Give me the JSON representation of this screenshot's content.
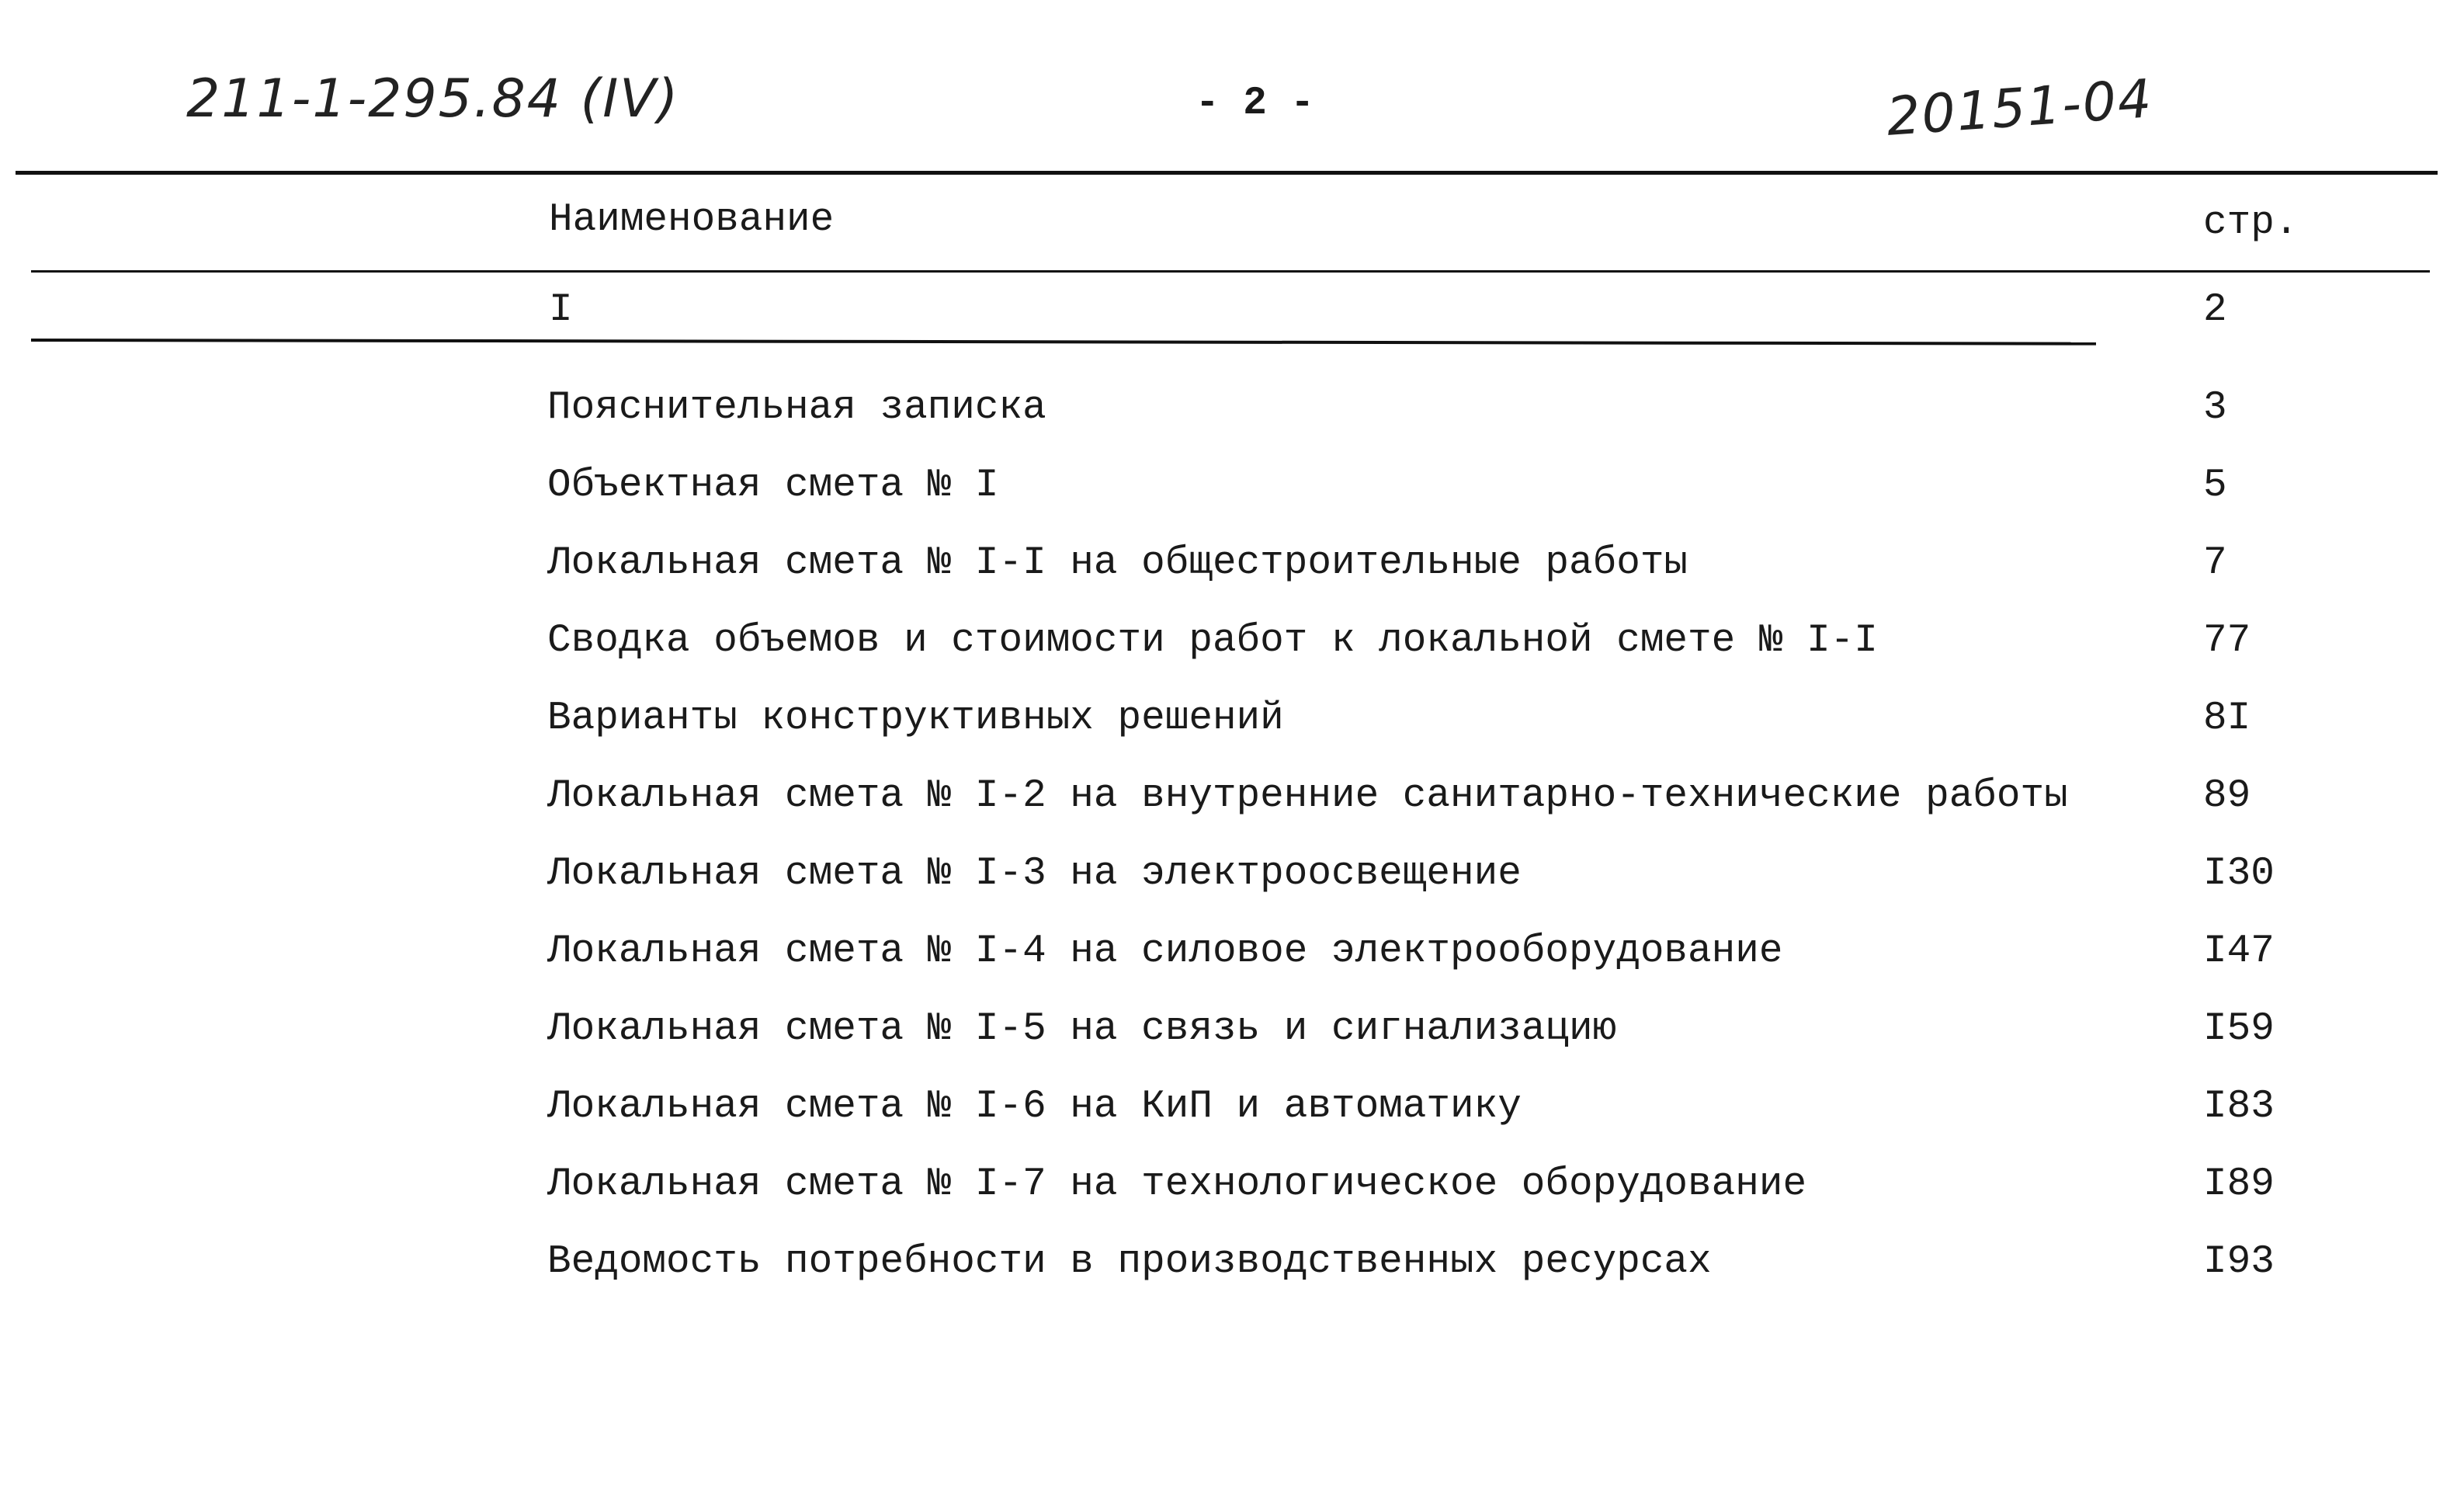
{
  "header": {
    "doc_code": "211-1-295.84 (IV)",
    "page_number": "- 2 -",
    "archive_number": "20151-04"
  },
  "table": {
    "columns": [
      "Наименование",
      "стр."
    ],
    "section": {
      "name": "I",
      "page": "2"
    },
    "rows": [
      {
        "name": "Пояснительная записка",
        "page": "3"
      },
      {
        "name": "Объектная смета № I",
        "page": "5"
      },
      {
        "name": "Локальная смета № I-I на общестроительные работы",
        "page": "7"
      },
      {
        "name": "Сводка объемов и стоимости работ к локальной смете № I-I",
        "page": "77"
      },
      {
        "name": "Варианты конструктивных решений",
        "page": "8I"
      },
      {
        "name": "Локальная смета № I-2 на внутренние санитарно-технические работы",
        "page": "89"
      },
      {
        "name": "Локальная смета № I-3 на электроосвещение",
        "page": "I30"
      },
      {
        "name": "Локальная смета № I-4 на силовое электрооборудование",
        "page": "I47"
      },
      {
        "name": "Локальная смета № I-5 на связь и сигнализацию",
        "page": "I59"
      },
      {
        "name": "Локальная смета № I-6 на КиП и автоматику",
        "page": "I83"
      },
      {
        "name": "Локальная смета № I-7 на технологическое оборудование",
        "page": "I89"
      },
      {
        "name": "Ведомость потребности в производственных ресурсах",
        "page": "I93"
      }
    ]
  }
}
